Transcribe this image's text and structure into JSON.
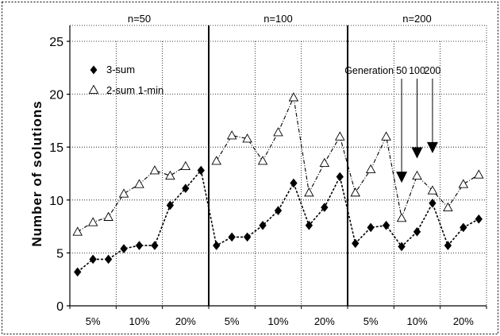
{
  "chart_data": {
    "type": "scatter",
    "title": "",
    "xlabel": "",
    "ylabel": "Number of solutions",
    "ylim": [
      0,
      25
    ],
    "yticks": [
      "0",
      "5",
      "10",
      "15",
      "20",
      "25"
    ],
    "grid": true,
    "legend_position": "top-left",
    "groups": [
      {
        "label": "n=50",
        "categories": [
          "5%",
          "10%",
          "20%"
        ]
      },
      {
        "label": "n=100",
        "categories": [
          "5%",
          "10%",
          "20%"
        ]
      },
      {
        "label": "n=200",
        "categories": [
          "5%",
          "10%",
          "20%"
        ]
      }
    ],
    "generations_per_category": [
      50,
      100,
      200
    ],
    "series": [
      {
        "name": "3-sum",
        "marker": "filled-diamond",
        "values": [
          3.2,
          4.4,
          4.4,
          5.4,
          5.7,
          5.7,
          9.5,
          11.1,
          12.8,
          5.7,
          6.5,
          6.5,
          7.6,
          9.0,
          11.6,
          7.6,
          9.3,
          12.2,
          5.9,
          7.4,
          7.6,
          5.6,
          7.0,
          9.7,
          5.7,
          7.4,
          8.2
        ]
      },
      {
        "name": "2-sum 1-min",
        "marker": "open-triangle",
        "values": [
          7.0,
          7.9,
          8.4,
          10.6,
          11.5,
          12.8,
          12.3,
          13.2,
          null,
          13.7,
          16.1,
          15.8,
          13.7,
          16.4,
          19.7,
          10.7,
          13.5,
          16.0,
          10.7,
          12.9,
          16.0,
          8.3,
          12.3,
          10.9,
          9.3,
          11.5,
          12.4
        ]
      }
    ],
    "annotation": {
      "text_parts": [
        "Generation",
        "50",
        "100",
        "200"
      ],
      "arrow_targets": [
        {
          "category_index": 21,
          "y": 12.0
        },
        {
          "category_index": 22,
          "y": 14.3
        },
        {
          "category_index": 23,
          "y": 14.8
        }
      ]
    }
  },
  "colors": {
    "background": "#ffffff",
    "axis": "#000000",
    "grid": "#000000",
    "marker": "#000000",
    "border": "#000000"
  }
}
